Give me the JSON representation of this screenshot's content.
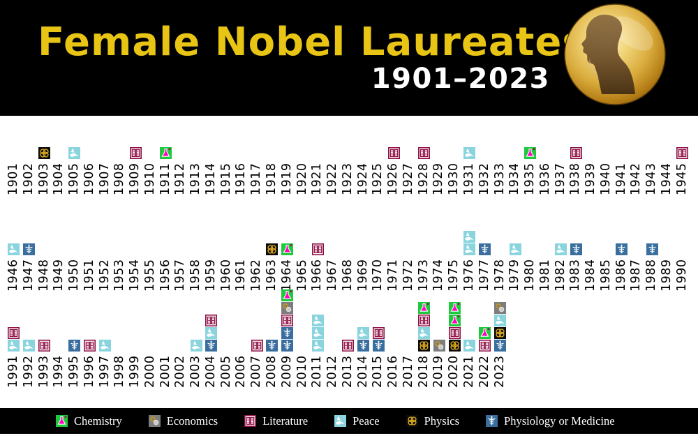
{
  "header": {
    "title": "Female Nobel Laureates",
    "subtitle": "1901–2023"
  },
  "medal": {
    "name": "nobel-medal-alfred-nobel-profile"
  },
  "colors": {
    "header_bg": "#000000",
    "title": "#E8C414",
    "subtitle": "#FFFFFF",
    "page_bg": "#FFFFFF",
    "year_text": "#000000",
    "legend_bg": "#000000",
    "legend_text": "#FFFFFF",
    "medal_gold": "#D9AB3C"
  },
  "categories": {
    "chemistry": {
      "label": "Chemistry",
      "color": "#1EC93E",
      "accent": "#FF00BE"
    },
    "economics": {
      "label": "Economics",
      "color": "#7D7D7D",
      "accent": "#C79A1E"
    },
    "literature": {
      "label": "Literature",
      "color": "#8E1045",
      "accent": "#FFFFFF"
    },
    "peace": {
      "label": "Peace",
      "color": "#8AD4DE",
      "accent": "#FFFFFF"
    },
    "physics": {
      "label": "Physics",
      "color": "#0B0B0B",
      "accent": "#D9A91F"
    },
    "medicine": {
      "label": "Physiology or Medicine",
      "color": "#3A6E9E",
      "accent": "#FFFFFF"
    }
  },
  "legend_order": [
    "chemistry",
    "economics",
    "literature",
    "peace",
    "physics",
    "medicine"
  ],
  "chart_data": {
    "type": "pictogram-timeline",
    "title": "Female Nobel Laureates",
    "subtitle": "1901–2023",
    "legend": [
      "Chemistry",
      "Economics",
      "Literature",
      "Peace",
      "Physics",
      "Physiology or Medicine"
    ],
    "rows": [
      {
        "start": 1901,
        "end": 1945
      },
      {
        "start": 1946,
        "end": 1990
      },
      {
        "start": 1991,
        "end": 2023
      }
    ],
    "awards_by_year_bottom_to_top": {
      "1903": [
        "physics"
      ],
      "1905": [
        "peace"
      ],
      "1909": [
        "literature"
      ],
      "1911": [
        "chemistry"
      ],
      "1926": [
        "literature"
      ],
      "1928": [
        "literature"
      ],
      "1931": [
        "peace"
      ],
      "1935": [
        "chemistry"
      ],
      "1938": [
        "literature"
      ],
      "1945": [
        "literature"
      ],
      "1946": [
        "peace"
      ],
      "1947": [
        "medicine"
      ],
      "1963": [
        "physics"
      ],
      "1964": [
        "chemistry"
      ],
      "1966": [
        "literature"
      ],
      "1976": [
        "peace",
        "peace"
      ],
      "1977": [
        "medicine"
      ],
      "1979": [
        "peace"
      ],
      "1982": [
        "peace"
      ],
      "1983": [
        "medicine"
      ],
      "1986": [
        "medicine"
      ],
      "1988": [
        "medicine"
      ],
      "1991": [
        "peace",
        "literature"
      ],
      "1992": [
        "peace"
      ],
      "1993": [
        "literature"
      ],
      "1995": [
        "medicine"
      ],
      "1996": [
        "literature"
      ],
      "1997": [
        "peace"
      ],
      "2003": [
        "peace"
      ],
      "2004": [
        "medicine",
        "peace",
        "literature"
      ],
      "2007": [
        "literature"
      ],
      "2008": [
        "medicine"
      ],
      "2009": [
        "medicine",
        "medicine",
        "literature",
        "economics",
        "chemistry"
      ],
      "2011": [
        "peace",
        "peace",
        "peace"
      ],
      "2013": [
        "literature"
      ],
      "2014": [
        "medicine",
        "peace"
      ],
      "2015": [
        "medicine",
        "literature"
      ],
      "2018": [
        "physics",
        "peace",
        "literature",
        "chemistry"
      ],
      "2019": [
        "economics"
      ],
      "2020": [
        "physics",
        "literature",
        "chemistry",
        "chemistry"
      ],
      "2021": [
        "peace"
      ],
      "2022": [
        "literature",
        "chemistry"
      ],
      "2023": [
        "medicine",
        "physics",
        "peace",
        "economics"
      ]
    }
  }
}
